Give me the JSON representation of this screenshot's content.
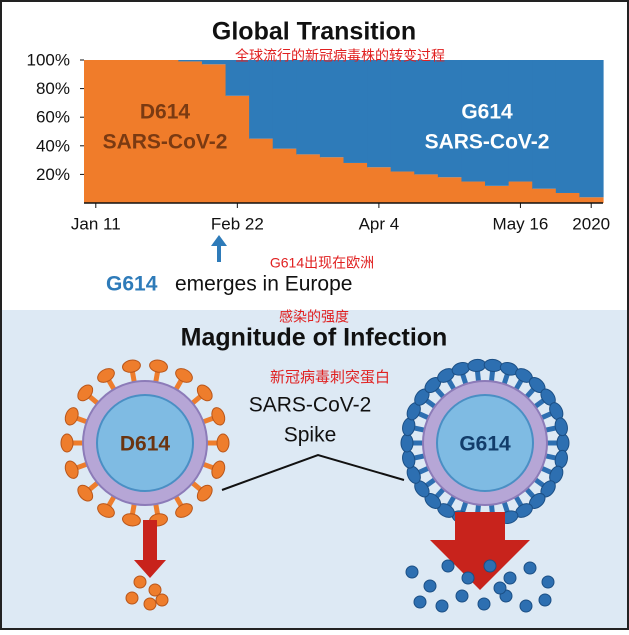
{
  "chart_data": {
    "type": "stacked-bar",
    "title": "Global Transition",
    "annotation": "全球流行的新冠病毒株的转变过程",
    "categories": [
      "Jan 11",
      null,
      null,
      null,
      null,
      null,
      "Feb 22",
      null,
      null,
      null,
      null,
      null,
      "Apr 4",
      null,
      null,
      null,
      null,
      null,
      "May 16",
      null,
      null,
      "2020"
    ],
    "series": [
      {
        "name": "D614",
        "label": "SARS-CoV-2",
        "color": "#f07c2a",
        "values": [
          100,
          100,
          100,
          100,
          99,
          97,
          75,
          45,
          38,
          34,
          32,
          28,
          25,
          22,
          20,
          18,
          15,
          12,
          15,
          10,
          7,
          4
        ]
      },
      {
        "name": "G614",
        "label": "SARS-CoV-2",
        "color": "#2e7bb9",
        "values": [
          0,
          0,
          0,
          0,
          1,
          3,
          25,
          55,
          62,
          66,
          68,
          72,
          75,
          78,
          80,
          82,
          85,
          88,
          85,
          90,
          93,
          96
        ]
      }
    ],
    "ylim": [
      0,
      100
    ],
    "yticks": [
      {
        "value": 20,
        "label": "20%"
      },
      {
        "value": 40,
        "label": "40%"
      },
      {
        "value": 60,
        "label": "60%"
      },
      {
        "value": 80,
        "label": "80%"
      },
      {
        "value": 100,
        "label": "100%"
      }
    ]
  },
  "emergence": {
    "strain": "G614",
    "text": "emerges in Europe",
    "annotation": "G614出现在欧洲"
  },
  "magnitude": {
    "title": "Magnitude of Infection",
    "title_annotation": "感染的强度",
    "spike_annotation": "新冠病毒刺突蛋白",
    "spike_label": [
      "SARS-CoV-2",
      "Spike"
    ],
    "viruses": [
      "D614",
      "G614"
    ]
  }
}
